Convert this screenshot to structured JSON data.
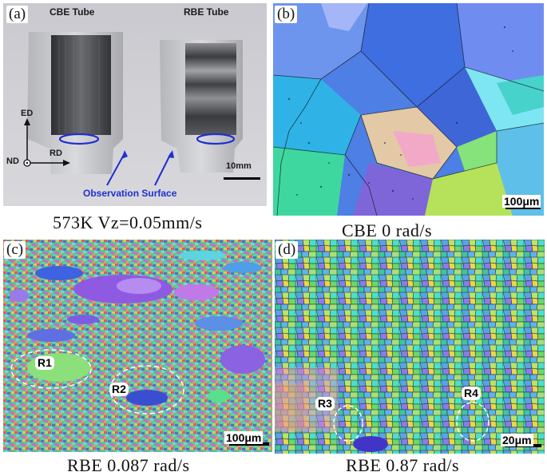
{
  "panels": {
    "a": {
      "label": "(a)",
      "cbe_title": "CBE Tube",
      "rbe_title": "RBE Tube",
      "axis_ed": "ED",
      "axis_rd": "RD",
      "axis_nd": "ND",
      "scale_bar": "10mm",
      "observation": "Observation Surface",
      "caption": "573K  Vz=0.05mm/s"
    },
    "b": {
      "label": "(b)",
      "scale_bar": "100μm",
      "caption": "CBE  0 rad/s"
    },
    "c": {
      "label": "(c)",
      "scale_bar": "100μm",
      "region1": "R1",
      "region2": "R2",
      "caption": "RBE  0.087 rad/s"
    },
    "d": {
      "label": "(d)",
      "scale_bar": "20μm",
      "region3": "R3",
      "region4": "R4",
      "caption": "RBE  0.87 rad/s"
    }
  },
  "colors": {
    "observation_blue": "#1f2fd0",
    "grain_blue": "#4a6fe0",
    "grain_green": "#55e08a",
    "grain_purple": "#8a4ad8"
  }
}
